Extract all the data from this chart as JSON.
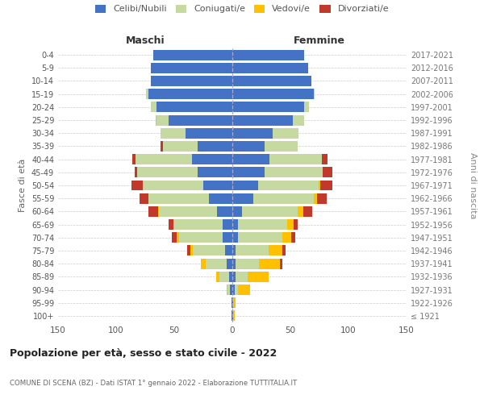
{
  "age_groups": [
    "100+",
    "95-99",
    "90-94",
    "85-89",
    "80-84",
    "75-79",
    "70-74",
    "65-69",
    "60-64",
    "55-59",
    "50-54",
    "45-49",
    "40-44",
    "35-39",
    "30-34",
    "25-29",
    "20-24",
    "15-19",
    "10-14",
    "5-9",
    "0-4"
  ],
  "birth_years": [
    "≤ 1921",
    "1922-1926",
    "1927-1931",
    "1932-1936",
    "1937-1941",
    "1942-1946",
    "1947-1951",
    "1952-1956",
    "1957-1961",
    "1962-1966",
    "1967-1971",
    "1972-1976",
    "1977-1981",
    "1982-1986",
    "1987-1991",
    "1992-1996",
    "1997-2001",
    "2002-2006",
    "2007-2011",
    "2012-2016",
    "2017-2021"
  ],
  "maschi_celibi": [
    1,
    1,
    2,
    3,
    5,
    6,
    8,
    8,
    13,
    20,
    25,
    30,
    35,
    30,
    40,
    55,
    65,
    72,
    70,
    70,
    68
  ],
  "maschi_coniugati": [
    0,
    0,
    2,
    8,
    18,
    28,
    38,
    42,
    50,
    52,
    52,
    52,
    48,
    30,
    22,
    10,
    5,
    2,
    0,
    0,
    0
  ],
  "maschi_vedovi": [
    0,
    0,
    1,
    3,
    4,
    2,
    2,
    1,
    1,
    0,
    0,
    0,
    0,
    0,
    0,
    1,
    0,
    0,
    0,
    0,
    0
  ],
  "maschi_divorziati": [
    0,
    0,
    0,
    0,
    0,
    3,
    4,
    4,
    8,
    8,
    10,
    2,
    3,
    2,
    0,
    0,
    0,
    0,
    0,
    0,
    0
  ],
  "femmine_nubili": [
    1,
    1,
    2,
    3,
    3,
    3,
    5,
    5,
    8,
    18,
    22,
    28,
    32,
    28,
    35,
    52,
    62,
    70,
    68,
    65,
    62
  ],
  "femmine_coniugate": [
    0,
    0,
    3,
    10,
    20,
    28,
    38,
    42,
    48,
    52,
    52,
    50,
    45,
    28,
    22,
    10,
    4,
    1,
    0,
    0,
    0
  ],
  "femmine_vedove": [
    1,
    2,
    10,
    18,
    18,
    12,
    8,
    6,
    5,
    3,
    2,
    0,
    0,
    0,
    0,
    0,
    0,
    0,
    0,
    0,
    0
  ],
  "femmine_divorziate": [
    0,
    0,
    0,
    0,
    2,
    3,
    3,
    3,
    8,
    8,
    10,
    8,
    5,
    0,
    0,
    0,
    0,
    0,
    0,
    0,
    0
  ],
  "colors": {
    "celibi": "#4472C4",
    "coniugati": "#c5d9a0",
    "vedovi": "#ffc000",
    "divorziati": "#c0392b"
  },
  "xlim": 150,
  "title": "Popolazione per età, sesso e stato civile - 2022",
  "subtitle": "COMUNE DI SCENA (BZ) - Dati ISTAT 1° gennaio 2022 - Elaborazione TUTTITALIA.IT",
  "ylabel": "Fasce di età",
  "ylabel_right": "Anni di nascita",
  "xlabel_left": "Maschi",
  "xlabel_right": "Femmine",
  "legend_labels": [
    "Celibi/Nubili",
    "Coniugati/e",
    "Vedovi/e",
    "Divorziati/e"
  ],
  "bg_color": "#ffffff",
  "grid_color": "#cccccc"
}
